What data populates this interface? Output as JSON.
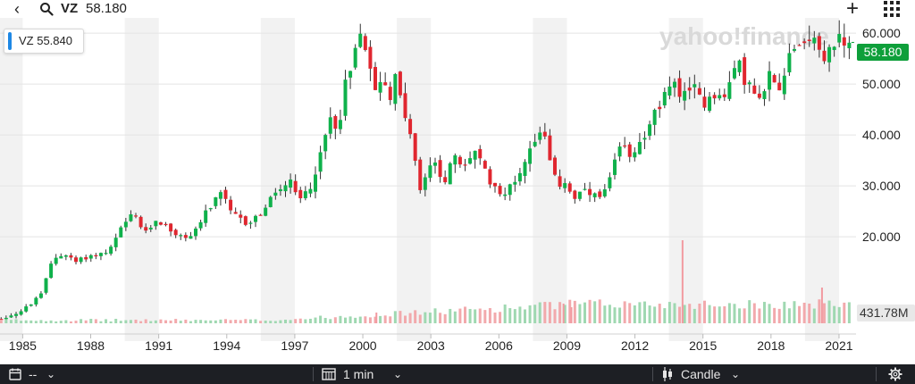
{
  "header": {
    "back_label": "‹",
    "search_icon": "search-icon",
    "symbol": "VZ",
    "price": "58.180",
    "add_label": "+",
    "menu_icon": "grid-icon"
  },
  "tooltip": {
    "text": "VZ 55.840",
    "accent": "#1e88e5"
  },
  "price_tag": {
    "text": "58.180",
    "color": "#0e9f3a"
  },
  "volume_tag": {
    "text": "431.78M"
  },
  "watermark": "yahoo!finance",
  "bottom": {
    "interval": "1 min",
    "chart_type": "Candle",
    "range": "--",
    "calendar_icon": "calendar-icon",
    "candle_icon": "candle-icon",
    "settings_icon": "gear-icon"
  },
  "chart_data": {
    "type": "candlestick",
    "ylim": [
      3,
      63
    ],
    "yticks": [
      60,
      50,
      40,
      30,
      20
    ],
    "ytick_labels": [
      "60.000",
      "50.000",
      "40.000",
      "30.000",
      "20.000"
    ],
    "xlim": [
      1984.0,
      2021.75
    ],
    "xticks": [
      1985,
      1988,
      1991,
      1994,
      1997,
      2000,
      2003,
      2006,
      2009,
      2012,
      2015,
      2018,
      2021
    ],
    "xtick_labels": [
      "1985",
      "1988",
      "1991",
      "1994",
      "1997",
      "2000",
      "2003",
      "2006",
      "2009",
      "2012",
      "2015",
      "2018",
      "2021"
    ],
    "up_color": "#0fb14b",
    "down_color": "#e0262f",
    "price_path": [
      [
        1984.0,
        3.8
      ],
      [
        1985.0,
        5.5
      ],
      [
        1985.8,
        8.5
      ],
      [
        1986.3,
        15.5
      ],
      [
        1986.8,
        16.8
      ],
      [
        1987.3,
        15.0
      ],
      [
        1987.8,
        16.0
      ],
      [
        1988.8,
        17.0
      ],
      [
        1989.4,
        22.0
      ],
      [
        1989.9,
        24.5
      ],
      [
        1990.4,
        20.5
      ],
      [
        1990.9,
        23.5
      ],
      [
        1991.6,
        21.0
      ],
      [
        1992.2,
        19.5
      ],
      [
        1992.7,
        22.0
      ],
      [
        1993.2,
        25.5
      ],
      [
        1993.8,
        28.5
      ],
      [
        1994.2,
        24.5
      ],
      [
        1994.9,
        22.5
      ],
      [
        1995.6,
        25.0
      ],
      [
        1996.2,
        29.0
      ],
      [
        1996.8,
        30.5
      ],
      [
        1997.2,
        27.0
      ],
      [
        1997.7,
        30.0
      ],
      [
        1998.2,
        37.0
      ],
      [
        1998.6,
        44.0
      ],
      [
        1998.9,
        41.0
      ],
      [
        1999.3,
        52.0
      ],
      [
        1999.7,
        57.0
      ],
      [
        1999.95,
        60.5
      ],
      [
        2000.3,
        55.0
      ],
      [
        2000.6,
        47.0
      ],
      [
        2000.9,
        52.0
      ],
      [
        2001.2,
        47.0
      ],
      [
        2001.5,
        52.0
      ],
      [
        2001.9,
        43.0
      ],
      [
        2002.2,
        38.0
      ],
      [
        2002.55,
        28.0
      ],
      [
        2002.8,
        33.0
      ],
      [
        2003.2,
        34.0
      ],
      [
        2003.6,
        31.0
      ],
      [
        2004.0,
        35.5
      ],
      [
        2004.5,
        33.5
      ],
      [
        2004.9,
        37.5
      ],
      [
        2005.5,
        31.5
      ],
      [
        2005.9,
        29.5
      ],
      [
        2006.3,
        28.5
      ],
      [
        2006.7,
        31.0
      ],
      [
        2007.2,
        35.5
      ],
      [
        2007.6,
        39.5
      ],
      [
        2007.95,
        42.5
      ],
      [
        2008.3,
        33.0
      ],
      [
        2008.7,
        30.0
      ],
      [
        2008.9,
        31.0
      ],
      [
        2009.3,
        27.5
      ],
      [
        2009.7,
        29.0
      ],
      [
        2010.1,
        28.0
      ],
      [
        2010.5,
        27.5
      ],
      [
        2010.9,
        31.0
      ],
      [
        2011.3,
        37.5
      ],
      [
        2011.8,
        36.5
      ],
      [
        2012.3,
        39.0
      ],
      [
        2012.8,
        44.0
      ],
      [
        2013.1,
        44.5
      ],
      [
        2013.6,
        51.5
      ],
      [
        2013.9,
        48.5
      ],
      [
        2014.3,
        47.0
      ],
      [
        2014.7,
        50.0
      ],
      [
        2015.0,
        46.0
      ],
      [
        2015.5,
        48.5
      ],
      [
        2015.9,
        46.5
      ],
      [
        2016.5,
        54.5
      ],
      [
        2016.9,
        50.5
      ],
      [
        2017.3,
        48.0
      ],
      [
        2017.6,
        45.5
      ],
      [
        2017.95,
        52.5
      ],
      [
        2018.3,
        48.5
      ],
      [
        2018.8,
        56.0
      ],
      [
        2019.1,
        58.5
      ],
      [
        2019.6,
        58.0
      ],
      [
        2019.9,
        60.5
      ],
      [
        2020.2,
        54.0
      ],
      [
        2020.6,
        57.0
      ],
      [
        2020.95,
        59.5
      ],
      [
        2021.25,
        56.5
      ],
      [
        2021.55,
        58.18
      ]
    ],
    "volume_spikes": [
      [
        2014.1,
        93
      ],
      [
        2020.25,
        40
      ],
      [
        2008.85,
        22
      ],
      [
        2009.2,
        18
      ],
      [
        2000.6,
        12
      ]
    ],
    "volume_tag": "431.78M",
    "last_price": 58.18
  }
}
